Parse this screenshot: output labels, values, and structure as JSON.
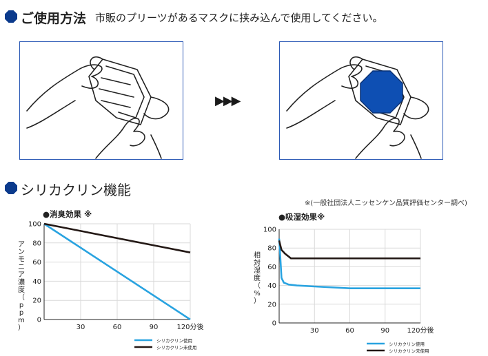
{
  "section1": {
    "heading": "ご使用方法",
    "instruction": "市販のプリーツがあるマスクに挟み込んで使用してください。",
    "arrow": "▶▶▶"
  },
  "section2": {
    "heading": "シリカクリン機能",
    "source_note": "※(一般社団法人ニッセンケン品質評価センター調べ)"
  },
  "colors": {
    "accent": "#0b3a8c",
    "panel_border": "#2b59b5",
    "series_used": "#29a3e0",
    "series_unused": "#231815"
  },
  "chart_data": [
    {
      "type": "line",
      "title": "●消臭効果 ※",
      "ylabel": "アンモニア濃度（ppm）",
      "x_ticks": [
        "30",
        "60",
        "90",
        "120分後"
      ],
      "y_ticks": [
        "0",
        "20",
        "40",
        "60",
        "80",
        "100"
      ],
      "xlim": [
        0,
        120
      ],
      "ylim": [
        0,
        100
      ],
      "grid": true,
      "legend_position": "bottom-right",
      "series": [
        {
          "name": "シリカクリン使用",
          "color": "#29a3e0",
          "x": [
            0,
            120
          ],
          "y": [
            100,
            0
          ]
        },
        {
          "name": "シリカクリン未使用",
          "color": "#231815",
          "x": [
            0,
            120
          ],
          "y": [
            100,
            70
          ]
        }
      ]
    },
    {
      "type": "line",
      "title": "●吸湿効果※",
      "ylabel": "相対湿度（%）",
      "x_ticks": [
        "30",
        "60",
        "90",
        "120分後"
      ],
      "y_ticks": [
        "0",
        "20",
        "40",
        "60",
        "80",
        "100"
      ],
      "xlim": [
        0,
        120
      ],
      "ylim": [
        0,
        100
      ],
      "grid": true,
      "legend_position": "bottom-right",
      "series": [
        {
          "name": "シリカクリン使用",
          "color": "#29a3e0",
          "x": [
            0,
            1,
            2,
            4,
            8,
            15,
            30,
            60,
            90,
            120
          ],
          "y": [
            90,
            70,
            48,
            43,
            41,
            40,
            39,
            37,
            37,
            37
          ]
        },
        {
          "name": "シリカクリン未使用",
          "color": "#231815",
          "x": [
            0,
            2,
            5,
            10,
            30,
            60,
            90,
            120
          ],
          "y": [
            88,
            78,
            74,
            69,
            69,
            69,
            69,
            69
          ]
        }
      ]
    }
  ]
}
